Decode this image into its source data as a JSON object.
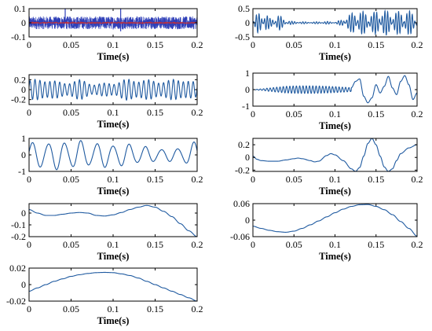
{
  "chart_data": [
    {
      "type": "line",
      "xlabel": "Time(s)",
      "xlim": [
        0,
        0.2
      ],
      "ylim": [
        -0.1,
        0.1
      ],
      "x_ticks": [
        "0",
        "0.05",
        "0.1",
        "0.15",
        "0.2"
      ],
      "y_ticks": [
        "0.1",
        "0",
        "-0.1"
      ],
      "y_tick_values": [
        0.1,
        0,
        -0.1
      ],
      "series": [
        {
          "color": "#2f3fb8",
          "style": "dense-noise",
          "amplitude": 0.045,
          "spikes": [
            {
              "x": 0.043,
              "y": 0.13
            },
            {
              "x": 0.109,
              "y": 0.14
            },
            {
              "x": 0.109,
              "y": -0.06
            }
          ]
        },
        {
          "color": "#c0303a",
          "style": "flat",
          "amplitude": 0.004
        }
      ]
    },
    {
      "type": "line",
      "xlabel": "Time(s)",
      "xlim": [
        0,
        0.2
      ],
      "ylim": [
        -0.5,
        0.5
      ],
      "x_ticks": [
        "0",
        "0.05",
        "0.1",
        "0.15",
        "0.2"
      ],
      "y_ticks": [
        "0.5",
        "0",
        "-0.5"
      ],
      "y_tick_values": [
        0.5,
        0,
        -0.5
      ],
      "series": [
        {
          "color": "#1f5aa0",
          "style": "burst-oscillation",
          "frequency_hz": 300,
          "envelope": [
            [
              0,
              0.05
            ],
            [
              0.006,
              0.35
            ],
            [
              0.013,
              0.4
            ],
            [
              0.022,
              0.15
            ],
            [
              0.03,
              0.3
            ],
            [
              0.04,
              0.1
            ],
            [
              0.05,
              0.05
            ],
            [
              0.07,
              0.03
            ],
            [
              0.09,
              0.05
            ],
            [
              0.1,
              0.02
            ],
            [
              0.105,
              0.08
            ],
            [
              0.118,
              0.3
            ],
            [
              0.125,
              0.45
            ],
            [
              0.135,
              0.4
            ],
            [
              0.145,
              0.35
            ],
            [
              0.155,
              0.5
            ],
            [
              0.165,
              0.42
            ],
            [
              0.175,
              0.4
            ],
            [
              0.185,
              0.45
            ],
            [
              0.2,
              0.35
            ]
          ]
        }
      ]
    },
    {
      "type": "line",
      "xlabel": "Time(s)",
      "xlim": [
        0,
        0.2
      ],
      "ylim": [
        -0.3,
        0.3
      ],
      "x_ticks": [
        "0",
        "0.05",
        "0.1",
        "0.15",
        "0.2"
      ],
      "y_ticks": [
        "0.2",
        "0",
        "-0.2"
      ],
      "y_tick_values": [
        0.2,
        0,
        -0.2
      ],
      "series": [
        {
          "color": "#1f5aa0",
          "style": "am-oscillation",
          "frequency_hz": 170,
          "envelope": [
            [
              0,
              0.2
            ],
            [
              0.02,
              0.22
            ],
            [
              0.04,
              0.15
            ],
            [
              0.06,
              0.2
            ],
            [
              0.08,
              0.12
            ],
            [
              0.1,
              0.15
            ],
            [
              0.12,
              0.22
            ],
            [
              0.14,
              0.2
            ],
            [
              0.16,
              0.18
            ],
            [
              0.18,
              0.23
            ],
            [
              0.2,
              0.15
            ]
          ]
        }
      ]
    },
    {
      "type": "line",
      "xlabel": "Time(s)",
      "xlim": [
        0,
        0.2
      ],
      "ylim": [
        -1,
        1
      ],
      "x_ticks": [
        "0",
        "0.05",
        "0.1",
        "0.15",
        "0.2"
      ],
      "y_ticks": [
        "1",
        "0",
        "-1"
      ],
      "y_tick_values": [
        1,
        0,
        -1
      ],
      "series": [
        {
          "color": "#1f5aa0",
          "style": "chirp",
          "points": [
            [
              0,
              0
            ],
            [
              0.01,
              0.04
            ],
            [
              0.02,
              0.1
            ],
            [
              0.03,
              0.15
            ],
            [
              0.04,
              0.2
            ],
            [
              0.05,
              0.22
            ],
            [
              0.06,
              0.23
            ],
            [
              0.07,
              0.23
            ],
            [
              0.08,
              0.22
            ],
            [
              0.09,
              0.2
            ],
            [
              0.1,
              0.18
            ],
            [
              0.11,
              0.15
            ],
            [
              0.12,
              0.12
            ],
            [
              0.125,
              0.5
            ],
            [
              0.13,
              0.65
            ],
            [
              0.135,
              -0.4
            ],
            [
              0.14,
              -0.8
            ],
            [
              0.145,
              -0.5
            ],
            [
              0.15,
              0.3
            ],
            [
              0.155,
              -0.2
            ],
            [
              0.16,
              0.2
            ],
            [
              0.165,
              0.8
            ],
            [
              0.17,
              0.1
            ],
            [
              0.175,
              -0.3
            ],
            [
              0.18,
              0.5
            ],
            [
              0.185,
              0.85
            ],
            [
              0.19,
              0.3
            ],
            [
              0.195,
              -0.6
            ],
            [
              0.2,
              -0.2
            ]
          ],
          "carrier_hz": 250
        }
      ]
    },
    {
      "type": "line",
      "xlabel": "Time(s)",
      "xlim": [
        0,
        0.2
      ],
      "ylim": [
        -1,
        1
      ],
      "x_ticks": [
        "0",
        "0.05",
        "0.1",
        "0.15",
        "0.2"
      ],
      "y_ticks": [
        "1",
        "0",
        "-1"
      ],
      "y_tick_values": [
        1,
        0,
        -1
      ],
      "series": [
        {
          "color": "#1f5aa0",
          "style": "am-oscillation",
          "frequency_hz": 52,
          "envelope": [
            [
              0,
              0.75
            ],
            [
              0.02,
              0.9
            ],
            [
              0.05,
              0.9
            ],
            [
              0.08,
              0.8
            ],
            [
              0.1,
              0.75
            ],
            [
              0.12,
              0.7
            ],
            [
              0.15,
              0.45
            ],
            [
              0.17,
              0.4
            ],
            [
              0.2,
              0.8
            ]
          ]
        }
      ]
    },
    {
      "type": "line",
      "xlabel": "Time(s)",
      "xlim": [
        0,
        0.2
      ],
      "ylim": [
        -0.22,
        0.3
      ],
      "x_ticks": [
        "0",
        "0.05",
        "0.1",
        "0.15",
        "0.2"
      ],
      "y_ticks": [
        "0.2",
        "0",
        "-0.2"
      ],
      "y_tick_values": [
        0.2,
        0,
        -0.2
      ],
      "series": [
        {
          "color": "#1f5aa0",
          "style": "points",
          "points": [
            [
              0,
              0.02
            ],
            [
              0.005,
              -0.03
            ],
            [
              0.01,
              -0.05
            ],
            [
              0.02,
              -0.06
            ],
            [
              0.03,
              -0.06
            ],
            [
              0.04,
              -0.04
            ],
            [
              0.05,
              -0.02
            ],
            [
              0.055,
              -0.01
            ],
            [
              0.06,
              -0.02
            ],
            [
              0.07,
              -0.05
            ],
            [
              0.075,
              -0.07
            ],
            [
              0.08,
              -0.06
            ],
            [
              0.09,
              0.03
            ],
            [
              0.095,
              0.06
            ],
            [
              0.1,
              0.04
            ],
            [
              0.11,
              -0.05
            ],
            [
              0.12,
              -0.18
            ],
            [
              0.125,
              -0.22
            ],
            [
              0.13,
              -0.16
            ],
            [
              0.135,
              0.02
            ],
            [
              0.14,
              0.22
            ],
            [
              0.145,
              0.3
            ],
            [
              0.15,
              0.2
            ],
            [
              0.155,
              0.02
            ],
            [
              0.16,
              -0.15
            ],
            [
              0.165,
              -0.22
            ],
            [
              0.17,
              -0.18
            ],
            [
              0.175,
              -0.05
            ],
            [
              0.18,
              0.06
            ],
            [
              0.19,
              0.15
            ],
            [
              0.2,
              0.2
            ]
          ]
        }
      ]
    },
    {
      "type": "line",
      "xlabel": "Time(s)",
      "xlim": [
        0,
        0.2
      ],
      "ylim": [
        -0.2,
        0.08
      ],
      "x_ticks": [
        "0",
        "0.05",
        "0.1",
        "0.15",
        "0.2"
      ],
      "y_ticks": [
        "0",
        "-0.1",
        "-0.2"
      ],
      "y_tick_values": [
        0,
        -0.1,
        -0.2
      ],
      "series": [
        {
          "color": "#1f5aa0",
          "style": "points",
          "points": [
            [
              0,
              0.03
            ],
            [
              0.01,
              0.0
            ],
            [
              0.02,
              -0.02
            ],
            [
              0.03,
              -0.02
            ],
            [
              0.04,
              -0.01
            ],
            [
              0.05,
              0.0
            ],
            [
              0.06,
              0.005
            ],
            [
              0.07,
              0.0
            ],
            [
              0.08,
              -0.02
            ],
            [
              0.09,
              -0.025
            ],
            [
              0.1,
              -0.015
            ],
            [
              0.11,
              0.005
            ],
            [
              0.12,
              0.03
            ],
            [
              0.13,
              0.05
            ],
            [
              0.14,
              0.065
            ],
            [
              0.15,
              0.05
            ],
            [
              0.16,
              0.015
            ],
            [
              0.17,
              -0.03
            ],
            [
              0.18,
              -0.09
            ],
            [
              0.19,
              -0.15
            ],
            [
              0.2,
              -0.2
            ]
          ]
        }
      ]
    },
    {
      "type": "line",
      "xlabel": "Time(s)",
      "xlim": [
        0,
        0.2
      ],
      "ylim": [
        -0.06,
        0.06
      ],
      "x_ticks": [
        "0",
        "0.05",
        "0.1",
        "0.15",
        "0.2"
      ],
      "y_ticks": [
        "0.06",
        "0",
        "-0.06"
      ],
      "y_tick_values": [
        0.06,
        0,
        -0.06
      ],
      "series": [
        {
          "color": "#1f5aa0",
          "style": "points",
          "points": [
            [
              0,
              -0.022
            ],
            [
              0.01,
              -0.03
            ],
            [
              0.02,
              -0.037
            ],
            [
              0.03,
              -0.042
            ],
            [
              0.04,
              -0.044
            ],
            [
              0.05,
              -0.04
            ],
            [
              0.06,
              -0.03
            ],
            [
              0.07,
              -0.017
            ],
            [
              0.08,
              -0.003
            ],
            [
              0.09,
              0.012
            ],
            [
              0.1,
              0.027
            ],
            [
              0.11,
              0.04
            ],
            [
              0.12,
              0.05
            ],
            [
              0.13,
              0.056
            ],
            [
              0.14,
              0.057
            ],
            [
              0.15,
              0.05
            ],
            [
              0.16,
              0.038
            ],
            [
              0.17,
              0.02
            ],
            [
              0.18,
              -0.005
            ],
            [
              0.19,
              -0.03
            ],
            [
              0.2,
              -0.058
            ]
          ]
        }
      ]
    },
    {
      "type": "line",
      "xlabel": "Time(s)",
      "xlim": [
        0,
        0.2
      ],
      "ylim": [
        -0.02,
        0.02
      ],
      "x_ticks": [
        "0",
        "0.05",
        "0.1",
        "0.15",
        "0.2"
      ],
      "y_ticks": [
        "0.02",
        "0",
        "-0.02"
      ],
      "y_tick_values": [
        0.02,
        0,
        -0.02
      ],
      "series": [
        {
          "color": "#1f5aa0",
          "style": "points",
          "points": [
            [
              0,
              -0.008
            ],
            [
              0.01,
              -0.004
            ],
            [
              0.02,
              0.0
            ],
            [
              0.03,
              0.004
            ],
            [
              0.04,
              0.007
            ],
            [
              0.05,
              0.01
            ],
            [
              0.06,
              0.012
            ],
            [
              0.07,
              0.0135
            ],
            [
              0.08,
              0.0145
            ],
            [
              0.09,
              0.0148
            ],
            [
              0.1,
              0.0145
            ],
            [
              0.11,
              0.013
            ],
            [
              0.12,
              0.011
            ],
            [
              0.13,
              0.008
            ],
            [
              0.14,
              0.004
            ],
            [
              0.15,
              0.0
            ],
            [
              0.16,
              -0.004
            ],
            [
              0.17,
              -0.008
            ],
            [
              0.18,
              -0.012
            ],
            [
              0.19,
              -0.016
            ],
            [
              0.2,
              -0.02
            ]
          ]
        }
      ]
    }
  ]
}
